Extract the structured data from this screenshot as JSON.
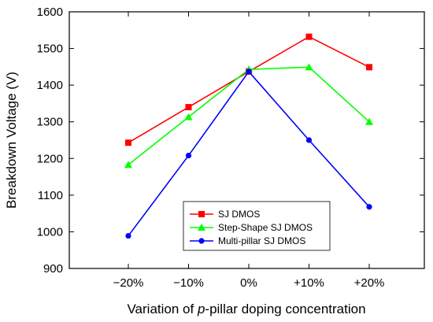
{
  "chart_data": {
    "type": "line",
    "title": "",
    "categories": [
      "−20%",
      "−10%",
      "0%",
      "+10%",
      "+20%"
    ],
    "xlabel_parts": [
      "Variation of ",
      "p",
      "-pillar doping concentration"
    ],
    "ylabel": "Breakdown Voltage (V)",
    "ylim": [
      900,
      1600
    ],
    "yticks": [
      "900",
      "1000",
      "1100",
      "1200",
      "1300",
      "1400",
      "1500",
      "1600"
    ],
    "grid": false,
    "legend_position": "bottom-center",
    "series": [
      {
        "name": "SJ DMOS",
        "color": "#ff0000",
        "marker": "square",
        "values": [
          1243,
          1340,
          1437,
          1532,
          1449
        ]
      },
      {
        "name": "Step-Shape SJ DMOS",
        "color": "#00ff00",
        "marker": "triangle",
        "values": [
          1183,
          1313,
          1443,
          1449,
          1300
        ]
      },
      {
        "name": "Multi-pillar SJ DMOS",
        "color": "#0000ff",
        "marker": "circle",
        "values": [
          989,
          1208,
          1437,
          1250,
          1068
        ]
      }
    ]
  }
}
